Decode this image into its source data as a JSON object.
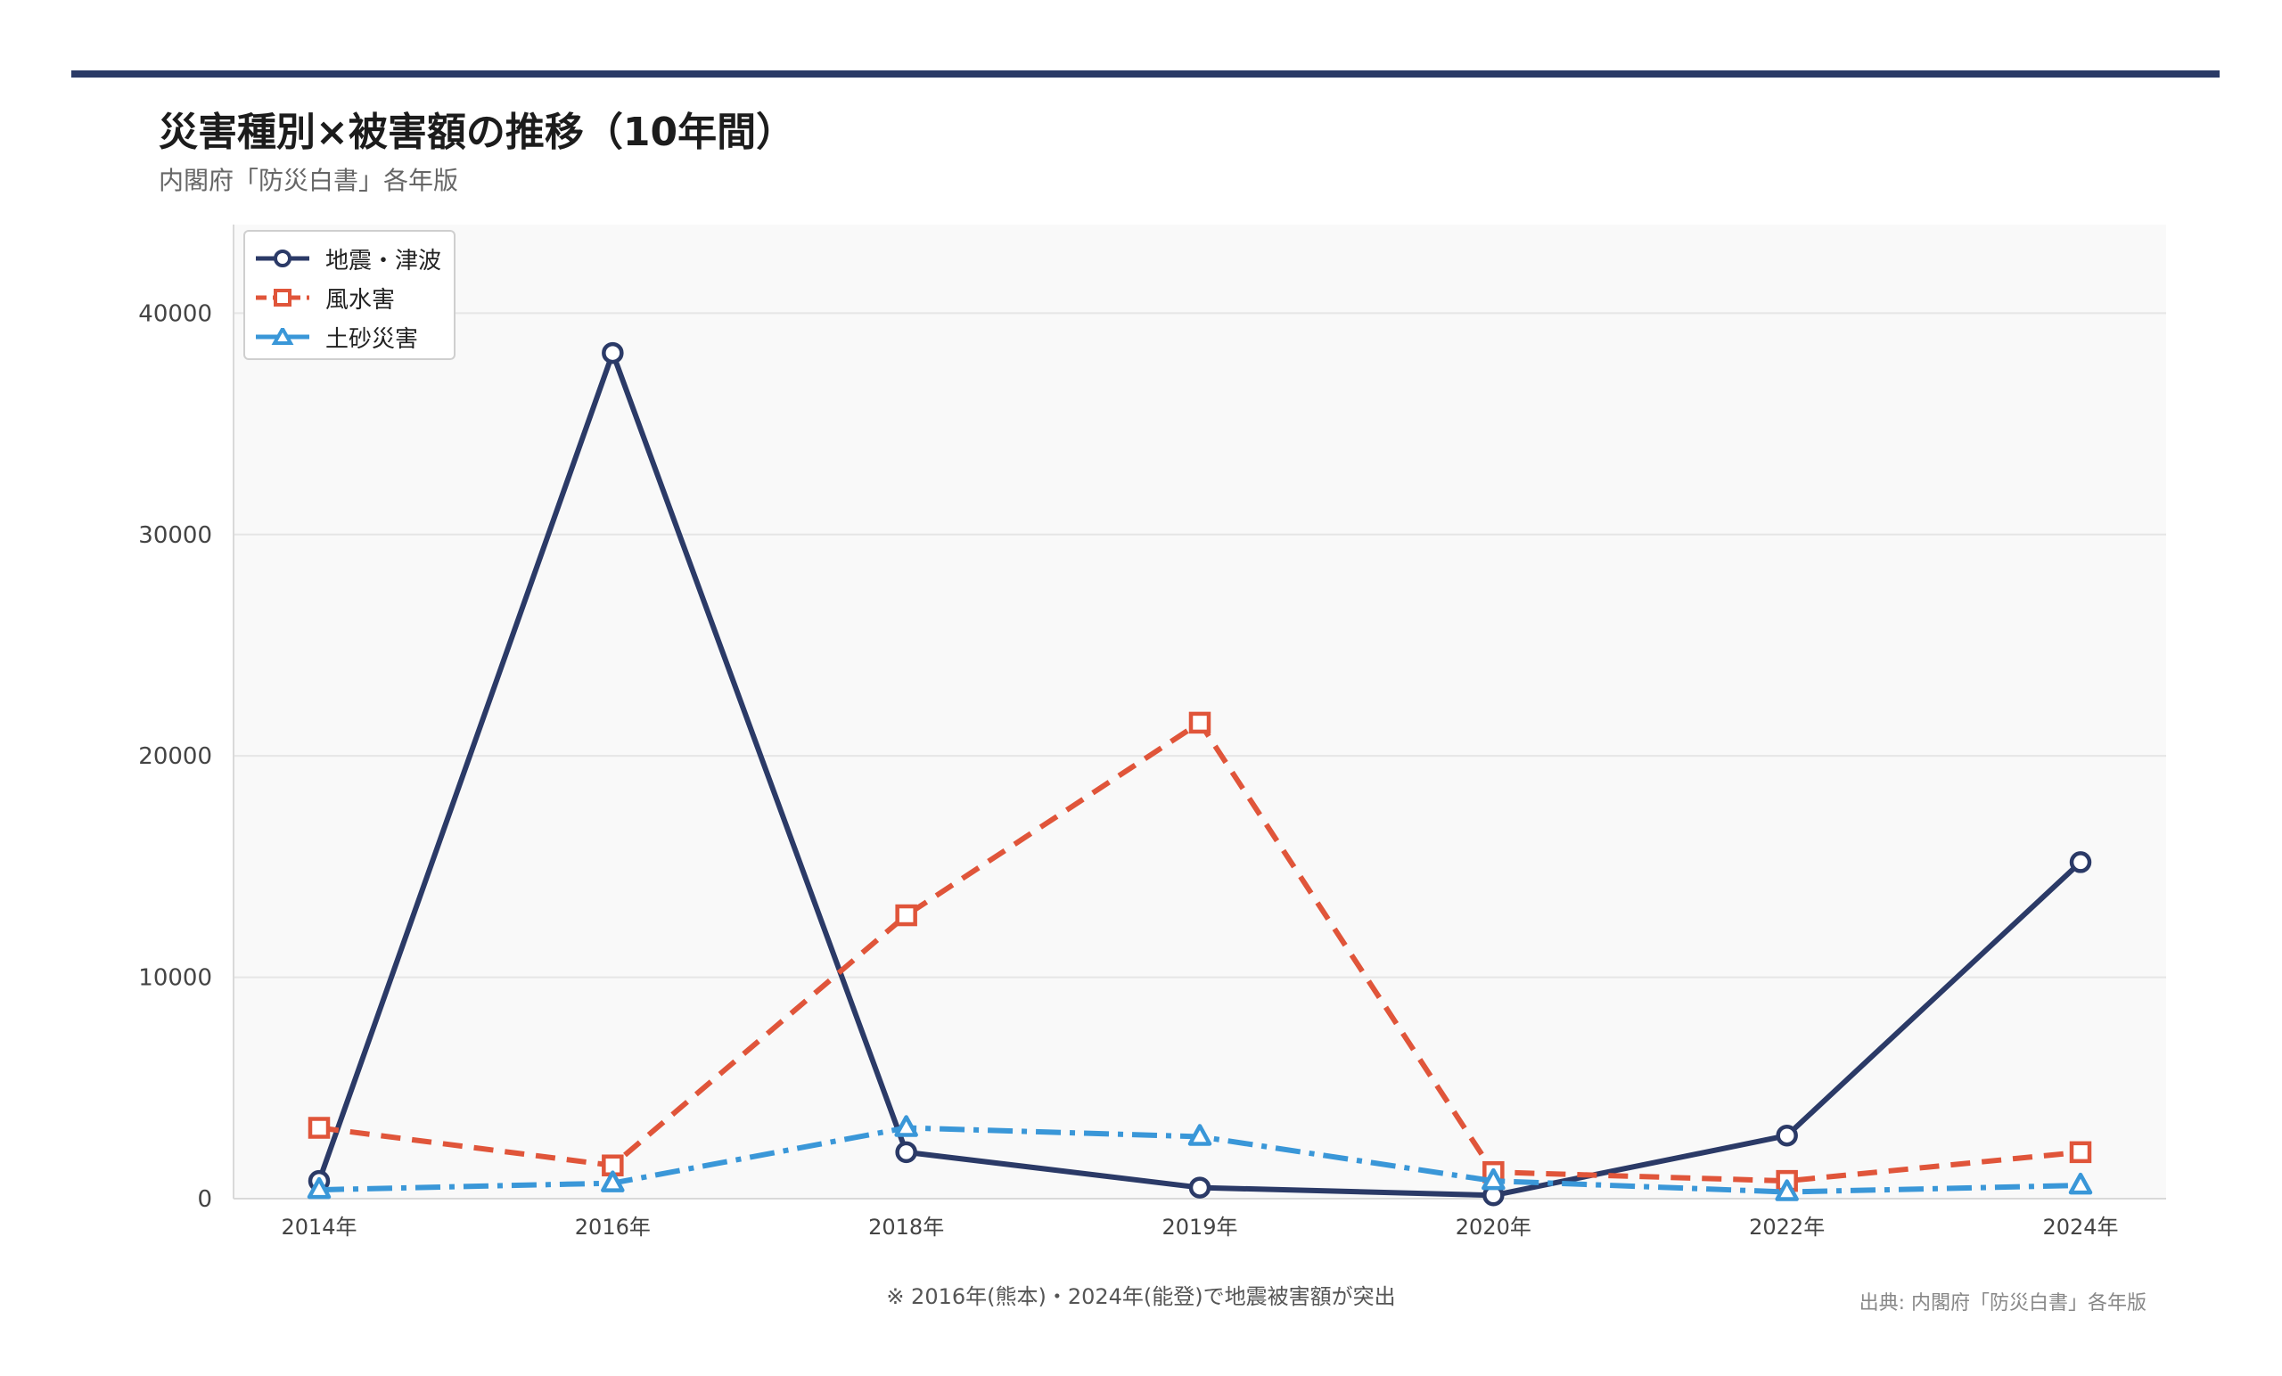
{
  "header": {
    "title": "災害種別×被害額の推移（10年間）",
    "subtitle": "内閣府「防災白書」各年版"
  },
  "footer": {
    "note": "※ 2016年(熊本)・2024年(能登)で地震被害額が突出",
    "source": "出典: 内閣府「防災白書」各年版"
  },
  "colors": {
    "earthquake": "#2b3a67",
    "flood": "#e0553a",
    "landslide": "#3a97d8",
    "plot_bg": "#f9f9f9",
    "grid": "#e6e6e6",
    "header_rule": "#2a3a66"
  },
  "chart_data": {
    "type": "line",
    "title": "災害種別×被害額の推移（10年間）",
    "xlabel": "",
    "ylabel": "",
    "categories": [
      "2014年",
      "2016年",
      "2018年",
      "2019年",
      "2020年",
      "2022年",
      "2024年"
    ],
    "ylim": [
      0,
      44000
    ],
    "yticks": [
      0,
      10000,
      20000,
      30000,
      40000
    ],
    "grid": true,
    "legend_position": "top-left",
    "series": [
      {
        "name": "地震・津波",
        "values": [
          800,
          38200,
          2100,
          500,
          150,
          2850,
          15200
        ],
        "marker": "circle",
        "line_style": "solid",
        "color": "#2b3a67"
      },
      {
        "name": "風水害",
        "values": [
          3200,
          1500,
          12800,
          21500,
          1200,
          800,
          2100
        ],
        "marker": "square",
        "line_style": "dashed",
        "color": "#e0553a"
      },
      {
        "name": "土砂災害",
        "values": [
          400,
          700,
          3200,
          2800,
          800,
          300,
          600
        ],
        "marker": "triangle",
        "line_style": "dashdot",
        "color": "#3a97d8"
      }
    ]
  }
}
